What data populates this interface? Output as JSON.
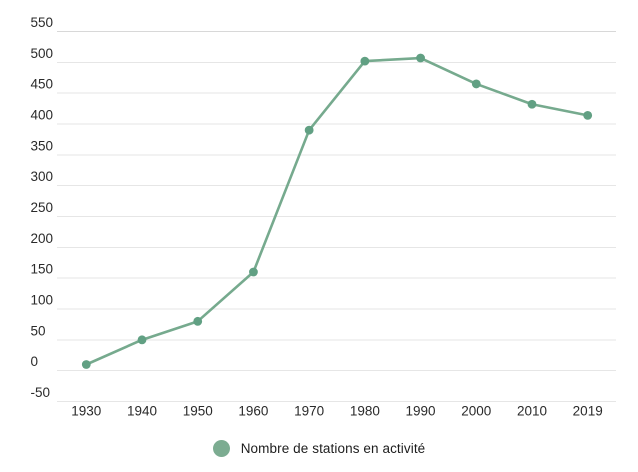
{
  "chart_data": {
    "type": "line",
    "categories": [
      "1930",
      "1940",
      "1950",
      "1960",
      "1970",
      "1980",
      "1990",
      "2000",
      "2010",
      "2019"
    ],
    "series": [
      {
        "name": "Nombre de stations en activité",
        "values": [
          10,
          50,
          80,
          160,
          390,
          502,
          507,
          465,
          432,
          414
        ]
      }
    ],
    "title": "",
    "xlabel": "",
    "ylabel": "",
    "ylim": [
      -50,
      550
    ],
    "yticks": [
      550,
      500,
      450,
      400,
      350,
      300,
      250,
      200,
      150,
      100,
      50,
      0,
      -50
    ],
    "grid": "horizontal",
    "legend_position": "bottom-center",
    "marker": "circle"
  },
  "colors": {
    "line": "#76aa8e",
    "point": "#61a083",
    "legend_marker": "#7cac91",
    "gridline": "#e6e6e6",
    "top_gridline": "#d8d8d8",
    "axis_text": "#2a2a2a",
    "legend_text": "#1d1d1d",
    "background": "#ffffff"
  }
}
